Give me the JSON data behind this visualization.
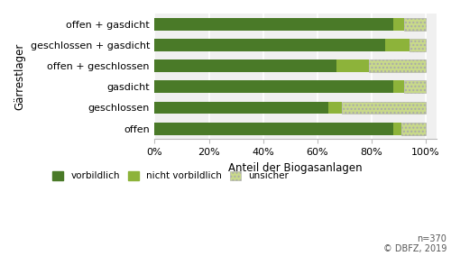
{
  "categories": [
    "offen",
    "geschlossen",
    "gasdicht",
    "offen + geschlossen",
    "geschlossen + gasdicht",
    "offen + gasdicht"
  ],
  "vorbildlich": [
    0.88,
    0.64,
    0.88,
    0.67,
    0.85,
    0.88
  ],
  "nicht_vorbildlich": [
    0.03,
    0.05,
    0.04,
    0.12,
    0.09,
    0.04
  ],
  "unsicher": [
    0.09,
    0.31,
    0.08,
    0.21,
    0.06,
    0.08
  ],
  "color_vorbildlich": "#4a7a28",
  "color_nicht_vorbildlich": "#8db33a",
  "color_unsicher_face": "#c8d98a",
  "xlabel": "Anteil der Biogasanlagen",
  "ylabel": "Gärrestlager",
  "legend_vorbildlich": "vorbildlich",
  "legend_nicht": "nicht vorbildlich",
  "legend_unsicher": "unsicher",
  "note": "n=370\n© DBFZ, 2019",
  "xticks": [
    0.0,
    0.2,
    0.4,
    0.6,
    0.8,
    1.0
  ],
  "xlim": [
    0,
    1.04
  ],
  "bar_height": 0.6,
  "facecolor": "#f0f0f0",
  "hatch_pattern": "...."
}
